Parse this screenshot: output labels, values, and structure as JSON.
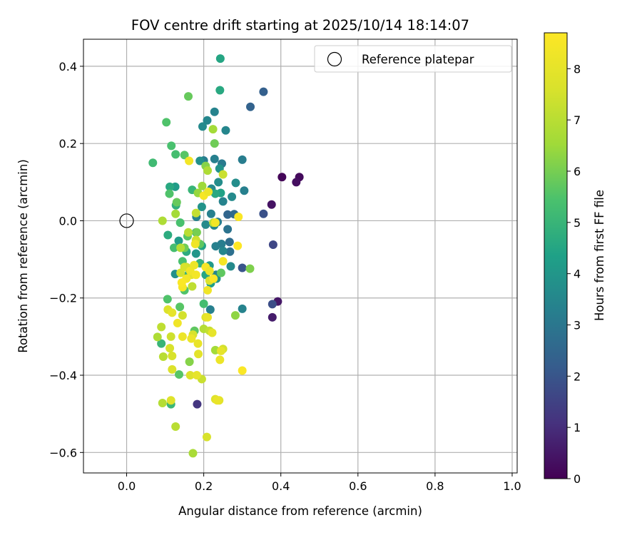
{
  "chart_data": {
    "type": "scatter",
    "title": "FOV centre drift starting at 2025/10/14 18:14:07",
    "xlabel": "Angular distance from reference (arcmin)",
    "ylabel": "Rotation from reference (arcmin)",
    "xlim": [
      -0.112,
      1.013
    ],
    "ylim": [
      -0.653,
      0.47
    ],
    "xticks": [
      0.0,
      0.2,
      0.4,
      0.6,
      0.8,
      1.0
    ],
    "xtick_labels": [
      "0.0",
      "0.2",
      "0.4",
      "0.6",
      "0.8",
      "1.0"
    ],
    "yticks": [
      -0.6,
      -0.4,
      -0.2,
      0.0,
      0.2,
      0.4
    ],
    "ytick_labels": [
      "−0.6",
      "−0.4",
      "−0.2",
      "0.0",
      "0.2",
      "0.4"
    ],
    "grid": true,
    "legend": {
      "position": "top-right",
      "entries": [
        "Reference platepar"
      ]
    },
    "reference_point": {
      "x": 0.0,
      "y": 0.0,
      "label": "Reference platepar"
    },
    "colorbar": {
      "label": "Hours from first FF file",
      "colormap": "viridis",
      "range": [
        0,
        8.7
      ],
      "ticks": [
        0,
        1,
        2,
        3,
        4,
        5,
        6,
        7,
        8
      ],
      "tick_labels": [
        "0",
        "1",
        "2",
        "3",
        "4",
        "5",
        "6",
        "7",
        "8"
      ]
    },
    "points": [
      {
        "x": 0.403,
        "y": 0.113,
        "hours": 0.1
      },
      {
        "x": 0.448,
        "y": 0.113,
        "hours": 0.2
      },
      {
        "x": 0.44,
        "y": 0.1,
        "hours": 0.3
      },
      {
        "x": 0.376,
        "y": 0.042,
        "hours": 0.4
      },
      {
        "x": 0.392,
        "y": -0.209,
        "hours": 0.5
      },
      {
        "x": 0.378,
        "y": -0.25,
        "hours": 0.6
      },
      {
        "x": 0.183,
        "y": -0.475,
        "hours": 1.2
      },
      {
        "x": 0.38,
        "y": -0.062,
        "hours": 1.6
      },
      {
        "x": 0.378,
        "y": -0.216,
        "hours": 1.8
      },
      {
        "x": 0.355,
        "y": 0.018,
        "hours": 1.9
      },
      {
        "x": 0.3,
        "y": -0.122,
        "hours": 2.0
      },
      {
        "x": 0.355,
        "y": 0.334,
        "hours": 2.3
      },
      {
        "x": 0.321,
        "y": 0.295,
        "hours": 2.4
      },
      {
        "x": 0.262,
        "y": 0.016,
        "hours": 2.5
      },
      {
        "x": 0.267,
        "y": -0.055,
        "hours": 2.7
      },
      {
        "x": 0.268,
        "y": -0.08,
        "hours": 2.8
      },
      {
        "x": 0.279,
        "y": 0.017,
        "hours": 2.6
      },
      {
        "x": 0.262,
        "y": -0.022,
        "hours": 2.9
      },
      {
        "x": 0.247,
        "y": 0.148,
        "hours": 3.1
      },
      {
        "x": 0.228,
        "y": 0.16,
        "hours": 3.3
      },
      {
        "x": 0.3,
        "y": 0.158,
        "hours": 3.2
      },
      {
        "x": 0.209,
        "y": 0.26,
        "hours": 3.5
      },
      {
        "x": 0.197,
        "y": 0.244,
        "hours": 3.6
      },
      {
        "x": 0.228,
        "y": 0.282,
        "hours": 3.4
      },
      {
        "x": 0.257,
        "y": 0.234,
        "hours": 3.5
      },
      {
        "x": 0.305,
        "y": 0.078,
        "hours": 3.3
      },
      {
        "x": 0.273,
        "y": 0.062,
        "hours": 3.6
      },
      {
        "x": 0.283,
        "y": 0.098,
        "hours": 3.7
      },
      {
        "x": 0.25,
        "y": 0.05,
        "hours": 3.4
      },
      {
        "x": 0.246,
        "y": -0.06,
        "hours": 3.2
      },
      {
        "x": 0.25,
        "y": -0.078,
        "hours": 3.5
      },
      {
        "x": 0.27,
        "y": -0.118,
        "hours": 3.6
      },
      {
        "x": 0.3,
        "y": -0.228,
        "hours": 3.4
      },
      {
        "x": 0.217,
        "y": -0.23,
        "hours": 3.3
      },
      {
        "x": 0.232,
        "y": -0.14,
        "hours": 3.5
      },
      {
        "x": 0.236,
        "y": -0.003,
        "hours": 3.2
      },
      {
        "x": 0.219,
        "y": 0.018,
        "hours": 3.3
      },
      {
        "x": 0.227,
        "y": -0.012,
        "hours": 3.5
      },
      {
        "x": 0.2,
        "y": 0.156,
        "hours": 3.2
      },
      {
        "x": 0.19,
        "y": 0.155,
        "hours": 3.8
      },
      {
        "x": 0.241,
        "y": 0.135,
        "hours": 3.9
      },
      {
        "x": 0.238,
        "y": 0.1,
        "hours": 3.7
      },
      {
        "x": 0.22,
        "y": 0.083,
        "hours": 3.6
      },
      {
        "x": 0.195,
        "y": 0.036,
        "hours": 3.9
      },
      {
        "x": 0.181,
        "y": 0.01,
        "hours": 3.4
      },
      {
        "x": 0.205,
        "y": -0.01,
        "hours": 3.6
      },
      {
        "x": 0.18,
        "y": -0.085,
        "hours": 4.0
      },
      {
        "x": 0.135,
        "y": -0.052,
        "hours": 4.2
      },
      {
        "x": 0.126,
        "y": -0.138,
        "hours": 3.8
      },
      {
        "x": 0.231,
        "y": -0.066,
        "hours": 3.3
      },
      {
        "x": 0.215,
        "y": -0.116,
        "hours": 4.1
      },
      {
        "x": 0.218,
        "y": -0.162,
        "hours": 4.3
      },
      {
        "x": 0.233,
        "y": -0.15,
        "hours": 3.9
      },
      {
        "x": 0.244,
        "y": 0.072,
        "hours": 4.4
      },
      {
        "x": 0.243,
        "y": 0.42,
        "hours": 4.5
      },
      {
        "x": 0.242,
        "y": 0.338,
        "hours": 4.6
      },
      {
        "x": 0.126,
        "y": 0.088,
        "hours": 4.2
      },
      {
        "x": 0.112,
        "y": 0.088,
        "hours": 4.6
      },
      {
        "x": 0.128,
        "y": 0.04,
        "hours": 4.8
      },
      {
        "x": 0.107,
        "y": -0.037,
        "hours": 4.7
      },
      {
        "x": 0.19,
        "y": -0.11,
        "hours": 4.9
      },
      {
        "x": 0.205,
        "y": -0.14,
        "hours": 4.5
      },
      {
        "x": 0.18,
        "y": -0.03,
        "hours": 4.9
      },
      {
        "x": 0.195,
        "y": -0.065,
        "hours": 4.4
      },
      {
        "x": 0.155,
        "y": -0.08,
        "hours": 4.7
      },
      {
        "x": 0.16,
        "y": -0.14,
        "hours": 4.8
      },
      {
        "x": 0.17,
        "y": 0.08,
        "hours": 5.0
      },
      {
        "x": 0.23,
        "y": 0.07,
        "hours": 4.6
      },
      {
        "x": 0.09,
        "y": -0.318,
        "hours": 5.0
      },
      {
        "x": 0.115,
        "y": -0.475,
        "hours": 5.1
      },
      {
        "x": 0.068,
        "y": 0.15,
        "hours": 5.2
      },
      {
        "x": 0.116,
        "y": 0.194,
        "hours": 5.4
      },
      {
        "x": 0.127,
        "y": 0.172,
        "hours": 5.3
      },
      {
        "x": 0.103,
        "y": 0.255,
        "hours": 5.5
      },
      {
        "x": 0.15,
        "y": 0.17,
        "hours": 5.6
      },
      {
        "x": 0.111,
        "y": 0.07,
        "hours": 5.5
      },
      {
        "x": 0.139,
        "y": -0.005,
        "hours": 5.4
      },
      {
        "x": 0.123,
        "y": -0.07,
        "hours": 5.3
      },
      {
        "x": 0.158,
        "y": -0.04,
        "hours": 5.6
      },
      {
        "x": 0.145,
        "y": -0.105,
        "hours": 5.4
      },
      {
        "x": 0.19,
        "y": -0.06,
        "hours": 5.7
      },
      {
        "x": 0.106,
        "y": -0.203,
        "hours": 5.5
      },
      {
        "x": 0.138,
        "y": -0.223,
        "hours": 5.6
      },
      {
        "x": 0.2,
        "y": -0.215,
        "hours": 5.3
      },
      {
        "x": 0.176,
        "y": -0.285,
        "hours": 5.7
      },
      {
        "x": 0.136,
        "y": -0.398,
        "hours": 5.6
      },
      {
        "x": 0.15,
        "y": -0.18,
        "hours": 5.5
      },
      {
        "x": 0.16,
        "y": 0.322,
        "hours": 5.8
      },
      {
        "x": 0.228,
        "y": 0.2,
        "hours": 5.9
      },
      {
        "x": 0.13,
        "y": 0.048,
        "hours": 5.8
      },
      {
        "x": 0.182,
        "y": -0.03,
        "hours": 6.0
      },
      {
        "x": 0.15,
        "y": -0.07,
        "hours": 5.9
      },
      {
        "x": 0.245,
        "y": -0.135,
        "hours": 5.7
      },
      {
        "x": 0.32,
        "y": -0.124,
        "hours": 6.1
      },
      {
        "x": 0.282,
        "y": -0.245,
        "hours": 6.3
      },
      {
        "x": 0.163,
        "y": -0.365,
        "hours": 6.2
      },
      {
        "x": 0.205,
        "y": 0.142,
        "hours": 6.2
      },
      {
        "x": 0.224,
        "y": 0.237,
        "hours": 6.6
      },
      {
        "x": 0.196,
        "y": 0.09,
        "hours": 6.5
      },
      {
        "x": 0.185,
        "y": 0.072,
        "hours": 6.4
      },
      {
        "x": 0.21,
        "y": 0.13,
        "hours": 6.8
      },
      {
        "x": 0.127,
        "y": 0.018,
        "hours": 6.6
      },
      {
        "x": 0.093,
        "y": 0.0,
        "hours": 6.8
      },
      {
        "x": 0.14,
        "y": -0.07,
        "hours": 6.9
      },
      {
        "x": 0.172,
        "y": -0.602,
        "hours": 6.7
      },
      {
        "x": 0.093,
        "y": -0.472,
        "hours": 6.9
      },
      {
        "x": 0.127,
        "y": -0.533,
        "hours": 7.0
      },
      {
        "x": 0.095,
        "y": -0.352,
        "hours": 7.0
      },
      {
        "x": 0.09,
        "y": -0.275,
        "hours": 7.1
      },
      {
        "x": 0.08,
        "y": -0.301,
        "hours": 6.8
      },
      {
        "x": 0.2,
        "y": -0.28,
        "hours": 6.9
      },
      {
        "x": 0.23,
        "y": -0.335,
        "hours": 6.6
      },
      {
        "x": 0.215,
        "y": -0.285,
        "hours": 7.2
      },
      {
        "x": 0.195,
        "y": -0.41,
        "hours": 7.3
      },
      {
        "x": 0.16,
        "y": -0.03,
        "hours": 7.0
      },
      {
        "x": 0.18,
        "y": 0.02,
        "hours": 7.2
      },
      {
        "x": 0.155,
        "y": -0.12,
        "hours": 7.4
      },
      {
        "x": 0.17,
        "y": -0.17,
        "hours": 7.1
      },
      {
        "x": 0.25,
        "y": 0.12,
        "hours": 7.3
      },
      {
        "x": 0.225,
        "y": -0.005,
        "hours": 7.0
      },
      {
        "x": 0.25,
        "y": -0.332,
        "hours": 7.5
      },
      {
        "x": 0.112,
        "y": -0.33,
        "hours": 7.6
      },
      {
        "x": 0.115,
        "y": -0.3,
        "hours": 7.4
      },
      {
        "x": 0.118,
        "y": -0.35,
        "hours": 7.6
      },
      {
        "x": 0.107,
        "y": -0.23,
        "hours": 7.7
      },
      {
        "x": 0.145,
        "y": -0.245,
        "hours": 7.5
      },
      {
        "x": 0.172,
        "y": -0.295,
        "hours": 7.6
      },
      {
        "x": 0.115,
        "y": -0.465,
        "hours": 7.8
      },
      {
        "x": 0.118,
        "y": -0.385,
        "hours": 7.7
      },
      {
        "x": 0.205,
        "y": -0.25,
        "hours": 7.8
      },
      {
        "x": 0.165,
        "y": -0.4,
        "hours": 7.7
      },
      {
        "x": 0.14,
        "y": -0.135,
        "hours": 7.5
      },
      {
        "x": 0.15,
        "y": -0.12,
        "hours": 7.6
      },
      {
        "x": 0.18,
        "y": -0.05,
        "hours": 7.4
      },
      {
        "x": 0.24,
        "y": -0.465,
        "hours": 7.9
      },
      {
        "x": 0.23,
        "y": -0.462,
        "hours": 7.8
      },
      {
        "x": 0.208,
        "y": -0.56,
        "hours": 7.6
      },
      {
        "x": 0.168,
        "y": -0.14,
        "hours": 7.9
      },
      {
        "x": 0.215,
        "y": -0.155,
        "hours": 7.7
      },
      {
        "x": 0.222,
        "y": -0.29,
        "hours": 8.0
      },
      {
        "x": 0.185,
        "y": -0.318,
        "hours": 8.1
      },
      {
        "x": 0.186,
        "y": -0.345,
        "hours": 7.9
      },
      {
        "x": 0.182,
        "y": -0.4,
        "hours": 8.0
      },
      {
        "x": 0.242,
        "y": -0.36,
        "hours": 8.2
      },
      {
        "x": 0.245,
        "y": -0.337,
        "hours": 8.0
      },
      {
        "x": 0.21,
        "y": -0.25,
        "hours": 8.1
      },
      {
        "x": 0.168,
        "y": -0.305,
        "hours": 8.2
      },
      {
        "x": 0.235,
        "y": -0.465,
        "hours": 8.1
      },
      {
        "x": 0.118,
        "y": -0.238,
        "hours": 8.0
      },
      {
        "x": 0.132,
        "y": -0.265,
        "hours": 8.3
      },
      {
        "x": 0.145,
        "y": -0.3,
        "hours": 8.2
      },
      {
        "x": 0.155,
        "y": -0.15,
        "hours": 8.4
      },
      {
        "x": 0.145,
        "y": -0.172,
        "hours": 8.5
      },
      {
        "x": 0.143,
        "y": -0.16,
        "hours": 8.6
      },
      {
        "x": 0.165,
        "y": -0.13,
        "hours": 8.3
      },
      {
        "x": 0.175,
        "y": -0.115,
        "hours": 8.2
      },
      {
        "x": 0.18,
        "y": -0.14,
        "hours": 8.4
      },
      {
        "x": 0.205,
        "y": -0.12,
        "hours": 8.5
      },
      {
        "x": 0.215,
        "y": -0.13,
        "hours": 8.2
      },
      {
        "x": 0.225,
        "y": -0.15,
        "hours": 8.6
      },
      {
        "x": 0.21,
        "y": -0.18,
        "hours": 8.3
      },
      {
        "x": 0.29,
        "y": 0.01,
        "hours": 8.6
      },
      {
        "x": 0.288,
        "y": -0.065,
        "hours": 8.7
      },
      {
        "x": 0.25,
        "y": -0.105,
        "hours": 8.5
      },
      {
        "x": 0.3,
        "y": -0.388,
        "hours": 8.6
      },
      {
        "x": 0.162,
        "y": 0.155,
        "hours": 8.4
      },
      {
        "x": 0.2,
        "y": 0.065,
        "hours": 8.5
      },
      {
        "x": 0.212,
        "y": 0.075,
        "hours": 8.2
      },
      {
        "x": 0.23,
        "y": -0.005,
        "hours": 8.4
      },
      {
        "x": 0.178,
        "y": -0.06,
        "hours": 8.3
      }
    ]
  }
}
